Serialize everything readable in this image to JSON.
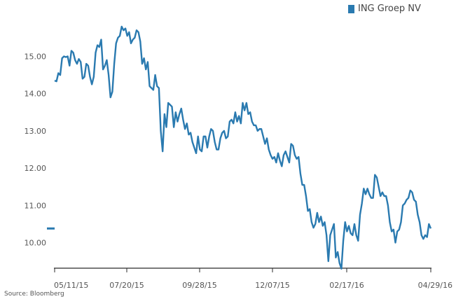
{
  "source": "Source: Bloomberg",
  "chart_data": {
    "type": "line",
    "title": "",
    "xlabel": "",
    "ylabel": "",
    "x_tick_labels": [
      "05/11/15",
      "07/20/15",
      "09/28/15",
      "12/07/15",
      "02/17/16",
      "04/29/16"
    ],
    "y_ticks": [
      10.0,
      11.0,
      12.0,
      13.0,
      14.0,
      15.0
    ],
    "y_tick_labels": [
      "10.00",
      "11.00",
      "12.00",
      "13.00",
      "14.00",
      "15.00"
    ],
    "ylim": [
      9.3,
      15.95
    ],
    "last_value": 10.38,
    "legend_position": "top-right",
    "series": [
      {
        "name": "ING Groep NV",
        "color": "#2a7ab0",
        "values": [
          14.35,
          14.33,
          14.55,
          14.5,
          14.95,
          15.0,
          14.98,
          15.0,
          14.75,
          15.15,
          15.1,
          14.9,
          14.8,
          14.93,
          14.85,
          14.4,
          14.45,
          14.8,
          14.75,
          14.45,
          14.25,
          14.45,
          15.1,
          15.3,
          15.25,
          15.45,
          14.65,
          14.75,
          14.9,
          14.5,
          13.9,
          14.05,
          14.8,
          15.35,
          15.5,
          15.55,
          15.8,
          15.7,
          15.75,
          15.55,
          15.65,
          15.35,
          15.45,
          15.5,
          15.7,
          15.65,
          15.4,
          14.8,
          14.95,
          14.65,
          14.85,
          14.2,
          14.15,
          14.1,
          14.5,
          14.2,
          14.15,
          13.0,
          12.45,
          13.45,
          13.1,
          13.75,
          13.7,
          13.65,
          13.1,
          13.5,
          13.25,
          13.45,
          13.6,
          13.3,
          13.05,
          13.2,
          12.9,
          12.95,
          12.7,
          12.55,
          12.4,
          12.85,
          12.5,
          12.45,
          12.85,
          12.85,
          12.55,
          12.85,
          13.05,
          13.0,
          12.7,
          12.5,
          12.5,
          12.8,
          12.95,
          13.0,
          12.8,
          12.85,
          13.25,
          13.3,
          13.2,
          13.5,
          13.25,
          13.4,
          13.2,
          13.75,
          13.55,
          13.75,
          13.45,
          13.5,
          13.25,
          13.15,
          13.15,
          13.0,
          13.05,
          13.05,
          12.85,
          12.65,
          12.8,
          12.5,
          12.35,
          12.25,
          12.3,
          12.15,
          12.4,
          12.2,
          12.05,
          12.35,
          12.45,
          12.3,
          12.15,
          12.65,
          12.6,
          12.35,
          12.25,
          12.3,
          11.85,
          11.55,
          11.55,
          11.25,
          10.85,
          10.9,
          10.55,
          10.4,
          10.5,
          10.8,
          10.55,
          10.7,
          10.45,
          10.55,
          10.2,
          9.5,
          10.2,
          10.35,
          10.5,
          9.6,
          9.75,
          9.45,
          9.3,
          10.05,
          10.55,
          10.3,
          10.45,
          10.25,
          10.2,
          10.5,
          10.2,
          10.05,
          10.75,
          11.05,
          11.45,
          11.3,
          11.45,
          11.3,
          11.2,
          11.2,
          11.82,
          11.75,
          11.5,
          11.25,
          11.35,
          11.25,
          11.25,
          11.0,
          10.55,
          10.3,
          10.35,
          10.0,
          10.3,
          10.35,
          10.55,
          11.0,
          11.05,
          11.15,
          11.2,
          11.4,
          11.35,
          11.15,
          11.1,
          10.75,
          10.55,
          10.2,
          10.1,
          10.2,
          10.15,
          10.5,
          10.38
        ]
      }
    ]
  }
}
